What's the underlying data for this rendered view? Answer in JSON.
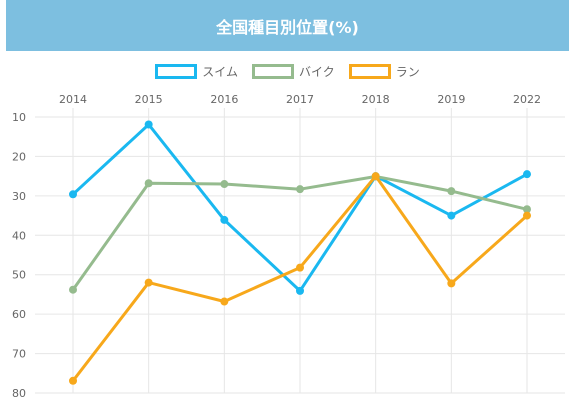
{
  "header": {
    "title": "全国種目別位置(%)"
  },
  "colors": {
    "header_bg": "#7dbfe0",
    "grid": "#e6e6e6"
  },
  "chart_data": {
    "type": "line",
    "title": "全国種目別位置(%)",
    "x": [
      "2014",
      "2015",
      "2016",
      "2017",
      "2018",
      "2019",
      "2022"
    ],
    "x_axis_position": "top",
    "ylim": [
      10,
      80
    ],
    "y_reversed": true,
    "y_ticks": [
      10,
      20,
      30,
      40,
      50,
      60,
      70,
      80
    ],
    "grid": true,
    "legend_position": "top",
    "series": [
      {
        "name": "スイム",
        "color": "#1ab8f0",
        "values": [
          29.6,
          11.9,
          36.1,
          54.1,
          25.0,
          35.0,
          24.5
        ]
      },
      {
        "name": "バイク",
        "color": "#95bb8e",
        "values": [
          53.8,
          26.8,
          27.0,
          28.3,
          25.1,
          28.8,
          33.4
        ]
      },
      {
        "name": "ラン",
        "color": "#f7a81b",
        "values": [
          76.9,
          52.0,
          56.8,
          48.2,
          25.0,
          52.2,
          35.0
        ]
      }
    ]
  }
}
